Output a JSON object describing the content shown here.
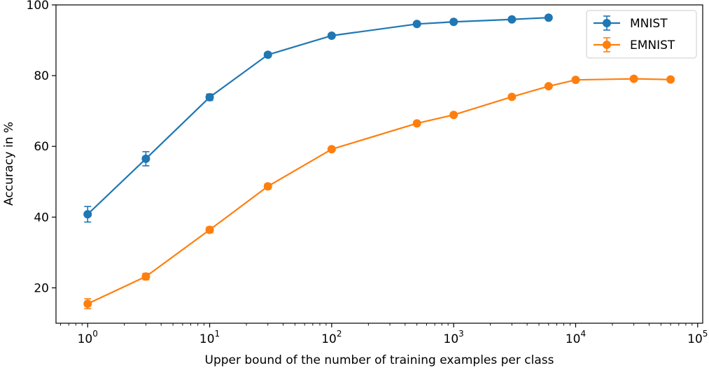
{
  "chart_data": {
    "type": "line",
    "xlabel": "Upper bound of the number of training examples per class",
    "ylabel": "Accuracy in %",
    "xscale": "log",
    "xlim": [
      0.55,
      110000
    ],
    "ylim": [
      10,
      100
    ],
    "x_ticks": [
      {
        "base": "10",
        "exp": "0",
        "value": 1
      },
      {
        "base": "10",
        "exp": "1",
        "value": 10
      },
      {
        "base": "10",
        "exp": "2",
        "value": 100
      },
      {
        "base": "10",
        "exp": "3",
        "value": 1000
      },
      {
        "base": "10",
        "exp": "4",
        "value": 10000
      },
      {
        "base": "10",
        "exp": "5",
        "value": 100000
      }
    ],
    "y_ticks": [
      20,
      40,
      60,
      80,
      100
    ],
    "grid": false,
    "legend_position": "top-right",
    "series": [
      {
        "name": "MNIST",
        "color": "#1f77b4",
        "x": [
          1,
          3,
          10,
          30,
          100,
          500,
          1000,
          3000,
          6000
        ],
        "y": [
          40.8,
          56.5,
          73.9,
          85.9,
          91.3,
          94.6,
          95.2,
          95.9,
          96.4
        ],
        "err": [
          2.2,
          2.0,
          0.9,
          0.6,
          0.5,
          0.4,
          0.4,
          0.3,
          0.3
        ]
      },
      {
        "name": "EMNIST",
        "color": "#ff7f0e",
        "x": [
          1,
          3,
          10,
          30,
          100,
          500,
          1000,
          3000,
          6000,
          10000,
          30000,
          60000
        ],
        "y": [
          15.5,
          23.2,
          36.4,
          48.7,
          59.2,
          66.5,
          68.9,
          74.0,
          77.0,
          78.8,
          79.1,
          78.9
        ],
        "err": [
          1.4,
          0.9,
          0.8,
          0.7,
          0.4,
          0.4,
          0.3,
          0.4,
          0.3,
          0.2,
          0.2,
          0.2
        ]
      }
    ]
  }
}
